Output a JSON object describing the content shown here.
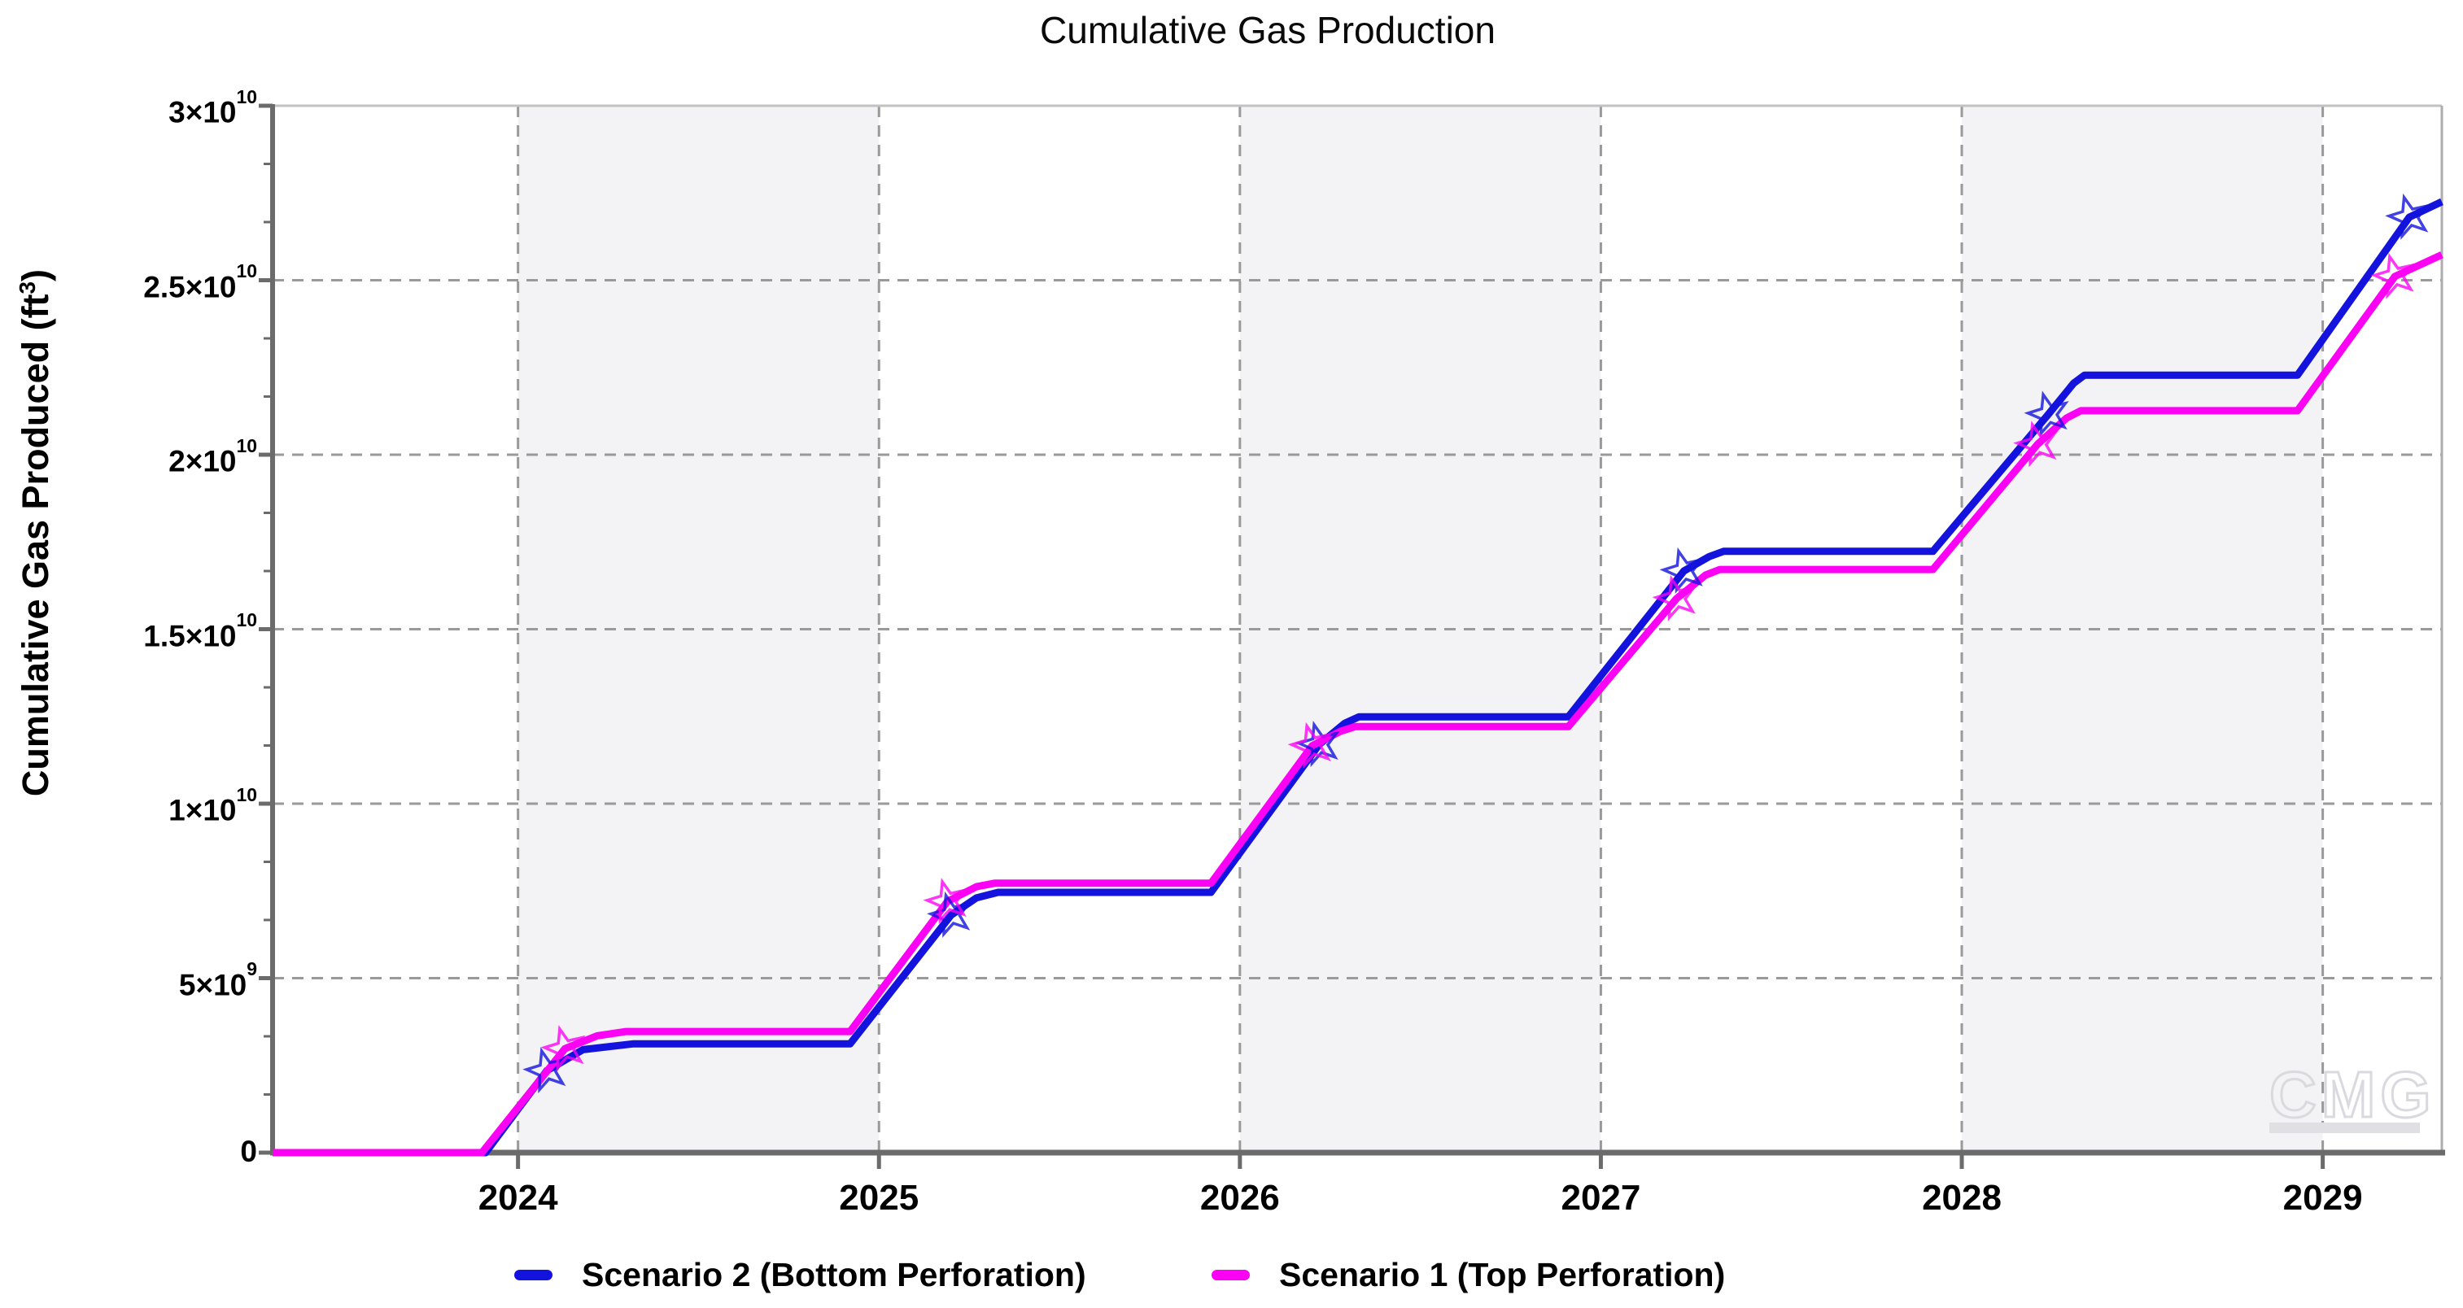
{
  "title": "Cumulative Gas Production",
  "y_axis": {
    "pre": "Cumulative Gas Produced (ft",
    "sup": "3",
    "post": ")"
  },
  "watermark": "CMG",
  "colors": {
    "scenario2_blue": "#1313dd",
    "scenario1_magenta": "#fb02f5",
    "band_gray": "#f3f3f5",
    "grid_dash": "#9a9a9a",
    "axis_dark": "#6b6b6b",
    "border_light": "#c2c2c2"
  },
  "legend": {
    "items": [
      {
        "label": "Scenario 2 (Bottom Perforation)",
        "color": "#1313dd"
      },
      {
        "label": "Scenario 1 (Top Perforation)",
        "color": "#fb02f5"
      }
    ]
  },
  "chart_data": {
    "type": "line",
    "title": "Cumulative Gas Production",
    "xlabel": "",
    "ylabel": "Cumulative Gas Produced (ft3)",
    "x_range": [
      2023.32,
      2029.33
    ],
    "y_range": [
      0,
      30000000000.0
    ],
    "grid": true,
    "legend_position": "bottom",
    "x_ticks": [
      2024,
      2025,
      2026,
      2027,
      2028,
      2029
    ],
    "y_ticks": [
      {
        "v": 30000000000.0,
        "m": "3×10",
        "e": "10",
        "grid": false
      },
      {
        "v": 25000000000.0,
        "m": "2.5×10",
        "e": "10",
        "grid": true
      },
      {
        "v": 20000000000.0,
        "m": "2×10",
        "e": "10",
        "grid": true
      },
      {
        "v": 15000000000.0,
        "m": "1.5×10",
        "e": "10",
        "grid": true
      },
      {
        "v": 10000000000.0,
        "m": "1×10",
        "e": "10",
        "grid": true
      },
      {
        "v": 5000000000.0,
        "m": "5×10",
        "e": "9",
        "grid": true
      },
      {
        "v": 0,
        "m": "0",
        "e": "",
        "grid": false
      }
    ],
    "shaded_year_bands": [
      [
        2024,
        2025
      ],
      [
        2026,
        2027
      ],
      [
        2028,
        2029
      ]
    ],
    "series": [
      {
        "name": "Scenario 2 (Bottom Perforation)",
        "color": "#1313dd",
        "marker": "open-star",
        "points": [
          [
            2023.32,
            0
          ],
          [
            2023.91,
            0
          ],
          [
            2024.08,
            2350000000.0
          ],
          [
            2024.18,
            2950000000.0
          ],
          [
            2024.32,
            3120000000.0
          ],
          [
            2024.92,
            3120000000.0
          ],
          [
            2025.2,
            6810000000.0
          ],
          [
            2025.27,
            7300000000.0
          ],
          [
            2025.33,
            7460000000.0
          ],
          [
            2025.92,
            7460000000.0
          ],
          [
            2026.22,
            11700000000.0
          ],
          [
            2026.29,
            12300000000.0
          ],
          [
            2026.33,
            12490000000.0
          ],
          [
            2026.91,
            12490000000.0
          ],
          [
            2027.23,
            16670000000.0
          ],
          [
            2027.3,
            17080000000.0
          ],
          [
            2027.34,
            17230000000.0
          ],
          [
            2027.92,
            17230000000.0
          ],
          [
            2028.24,
            21160000000.0
          ],
          [
            2028.31,
            22050000000.0
          ],
          [
            2028.34,
            22280000000.0
          ],
          [
            2028.93,
            22280000000.0
          ],
          [
            2029.24,
            26810000000.0
          ],
          [
            2029.33,
            27250000000.0
          ]
        ],
        "stars": [
          [
            2024.08,
            2350000000.0
          ],
          [
            2025.2,
            6810000000.0
          ],
          [
            2026.22,
            11700000000.0
          ],
          [
            2027.23,
            16670000000.0
          ],
          [
            2028.24,
            21160000000.0
          ],
          [
            2029.24,
            26810000000.0
          ]
        ]
      },
      {
        "name": "Scenario 1 (Top Perforation)",
        "color": "#fb02f5",
        "marker": "open-star",
        "points": [
          [
            2023.32,
            0
          ],
          [
            2023.9,
            0
          ],
          [
            2024.13,
            2980000000.0
          ],
          [
            2024.22,
            3350000000.0
          ],
          [
            2024.3,
            3470000000.0
          ],
          [
            2024.92,
            3470000000.0
          ],
          [
            2025.19,
            7200000000.0
          ],
          [
            2025.27,
            7620000000.0
          ],
          [
            2025.32,
            7720000000.0
          ],
          [
            2025.92,
            7720000000.0
          ],
          [
            2026.2,
            11660000000.0
          ],
          [
            2026.28,
            12080000000.0
          ],
          [
            2026.32,
            12210000000.0
          ],
          [
            2026.91,
            12210000000.0
          ],
          [
            2027.21,
            15880000000.0
          ],
          [
            2027.29,
            16550000000.0
          ],
          [
            2027.33,
            16710000000.0
          ],
          [
            2027.92,
            16710000000.0
          ],
          [
            2028.21,
            20300000000.0
          ],
          [
            2028.29,
            21050000000.0
          ],
          [
            2028.33,
            21260000000.0
          ],
          [
            2028.93,
            21260000000.0
          ],
          [
            2029.2,
            25110000000.0
          ],
          [
            2029.33,
            25730000000.0
          ]
        ],
        "stars": [
          [
            2024.13,
            2980000000.0
          ],
          [
            2025.19,
            7200000000.0
          ],
          [
            2026.2,
            11660000000.0
          ],
          [
            2027.21,
            15880000000.0
          ],
          [
            2028.21,
            20300000000.0
          ],
          [
            2029.2,
            25110000000.0
          ]
        ]
      }
    ]
  }
}
